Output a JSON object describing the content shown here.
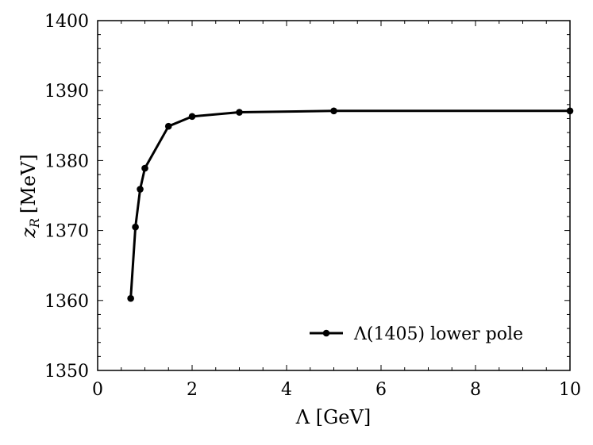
{
  "chart_data": {
    "type": "line",
    "title": "",
    "xlabel": "Λ [GeV]",
    "ylabel_main": "z",
    "ylabel_sub": "R",
    "ylabel_unit": "[MeV]",
    "xlim": [
      0,
      10
    ],
    "ylim": [
      1350,
      1400
    ],
    "xticks": [
      0,
      2,
      4,
      6,
      8,
      10
    ],
    "yticks": [
      1350,
      1360,
      1370,
      1380,
      1390,
      1400
    ],
    "xtick_labels": [
      "0",
      "2",
      "4",
      "6",
      "8",
      "10"
    ],
    "ytick_labels": [
      "1350",
      "1360",
      "1370",
      "1380",
      "1390",
      "1400"
    ],
    "grid": false,
    "legend_position": "bottom-right",
    "series": [
      {
        "name": "Λ(1405) lower pole",
        "color": "#000000",
        "marker": "circle",
        "x": [
          0.7,
          0.8,
          0.9,
          1.0,
          1.5,
          2.0,
          3.0,
          5.0,
          10.0
        ],
        "y": [
          1360.3,
          1370.5,
          1375.9,
          1378.9,
          1384.9,
          1386.3,
          1386.9,
          1387.1,
          1387.1
        ]
      }
    ]
  }
}
